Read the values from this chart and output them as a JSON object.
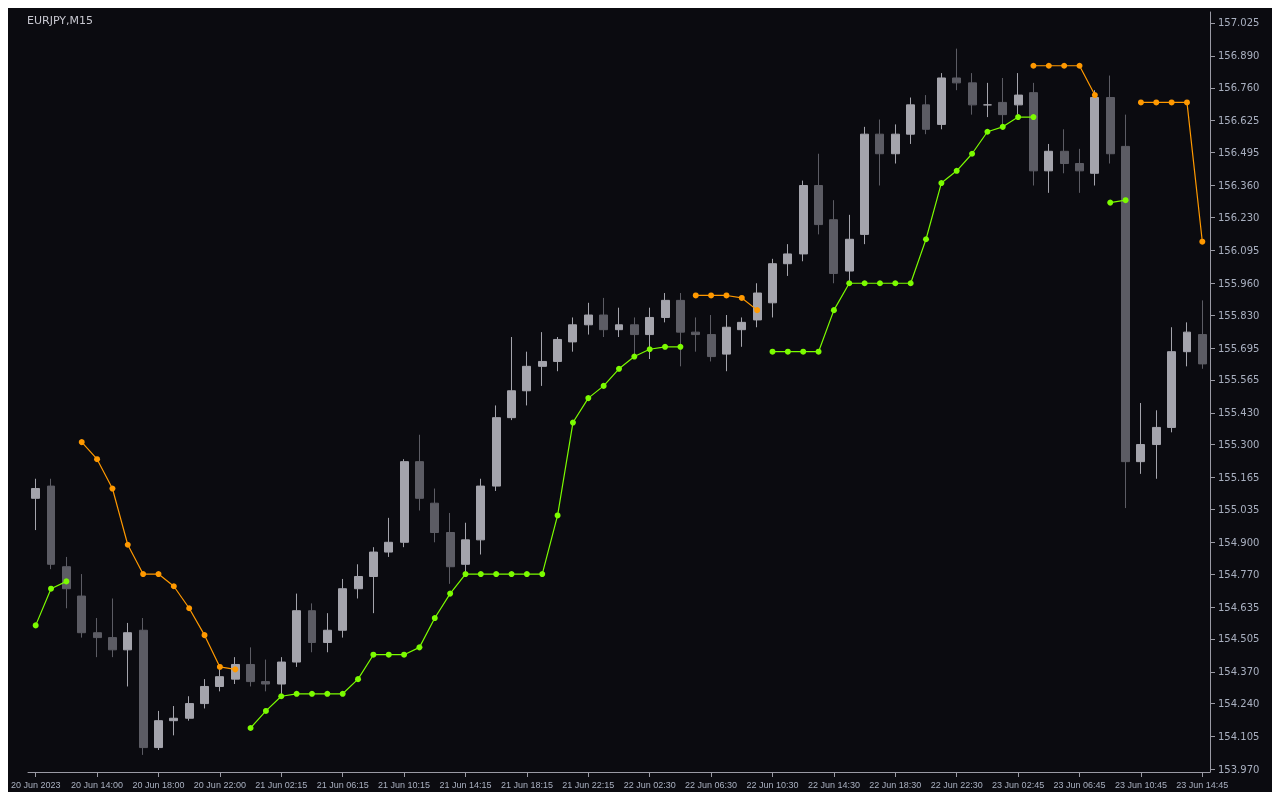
{
  "chart_data": {
    "type": "candlestick",
    "title": "EURJPY,M15",
    "categories": [
      "20 Jun 2023",
      null,
      null,
      null,
      "20 Jun 14:00",
      null,
      null,
      null,
      "20 Jun 18:00",
      null,
      null,
      null,
      "20 Jun 22:00",
      null,
      null,
      null,
      "21 Jun 02:15",
      null,
      null,
      null,
      "21 Jun 06:15",
      null,
      null,
      null,
      "21 Jun 10:15",
      null,
      null,
      null,
      "21 Jun 14:15",
      null,
      null,
      null,
      "21 Jun 18:15",
      null,
      null,
      null,
      "21 Jun 22:15",
      null,
      null,
      null,
      "22 Jun 02:30",
      null,
      null,
      null,
      "22 Jun 06:30",
      null,
      null,
      null,
      "22 Jun 10:30",
      null,
      null,
      null,
      "22 Jun 14:30",
      null,
      null,
      null,
      "22 Jun 18:30",
      null,
      null,
      null,
      "22 Jun 22:30",
      null,
      null,
      null,
      "23 Jun 02:45",
      null,
      null,
      null,
      "23 Jun 06:45",
      null,
      null,
      null,
      "23 Jun 10:45",
      null,
      null,
      null,
      "23 Jun 14:45"
    ],
    "ohlc": [
      [
        155.08,
        155.16,
        154.95,
        155.12
      ],
      [
        155.13,
        155.16,
        154.79,
        154.81
      ],
      [
        154.8,
        154.84,
        154.63,
        154.71
      ],
      [
        154.68,
        154.77,
        154.51,
        154.53
      ],
      [
        154.53,
        154.59,
        154.43,
        154.51
      ],
      [
        154.51,
        154.67,
        154.43,
        154.46
      ],
      [
        154.46,
        154.57,
        154.31,
        154.53
      ],
      [
        154.54,
        154.59,
        154.03,
        154.06
      ],
      [
        154.06,
        154.21,
        154.05,
        154.17
      ],
      [
        154.17,
        154.23,
        154.11,
        154.18
      ],
      [
        154.18,
        154.27,
        154.17,
        154.24
      ],
      [
        154.24,
        154.34,
        154.22,
        154.31
      ],
      [
        154.31,
        154.38,
        154.29,
        154.35
      ],
      [
        154.34,
        154.43,
        154.32,
        154.4
      ],
      [
        154.4,
        154.47,
        154.31,
        154.33
      ],
      [
        154.33,
        154.42,
        154.29,
        154.32
      ],
      [
        154.32,
        154.43,
        154.28,
        154.41
      ],
      [
        154.41,
        154.69,
        154.39,
        154.62
      ],
      [
        154.62,
        154.65,
        154.45,
        154.49
      ],
      [
        154.49,
        154.61,
        154.45,
        154.54
      ],
      [
        154.54,
        154.75,
        154.51,
        154.71
      ],
      [
        154.71,
        154.81,
        154.67,
        154.76
      ],
      [
        154.76,
        154.88,
        154.61,
        154.86
      ],
      [
        154.86,
        155.0,
        154.84,
        154.9
      ],
      [
        154.9,
        155.24,
        154.88,
        155.23
      ],
      [
        155.23,
        155.34,
        155.03,
        155.08
      ],
      [
        155.06,
        155.12,
        154.9,
        154.94
      ],
      [
        154.94,
        155.02,
        154.73,
        154.8
      ],
      [
        154.81,
        154.98,
        154.77,
        154.91
      ],
      [
        154.91,
        155.16,
        154.85,
        155.13
      ],
      [
        155.13,
        155.46,
        155.11,
        155.41
      ],
      [
        155.41,
        155.74,
        155.4,
        155.52
      ],
      [
        155.52,
        155.68,
        155.46,
        155.62
      ],
      [
        155.62,
        155.76,
        155.54,
        155.64
      ],
      [
        155.64,
        155.74,
        155.6,
        155.73
      ],
      [
        155.72,
        155.82,
        155.68,
        155.79
      ],
      [
        155.79,
        155.88,
        155.75,
        155.83
      ],
      [
        155.83,
        155.9,
        155.74,
        155.77
      ],
      [
        155.77,
        155.86,
        155.74,
        155.79
      ],
      [
        155.79,
        155.82,
        155.67,
        155.75
      ],
      [
        155.75,
        155.86,
        155.65,
        155.82
      ],
      [
        155.82,
        155.92,
        155.8,
        155.89
      ],
      [
        155.89,
        155.92,
        155.62,
        155.76
      ],
      [
        155.76,
        155.82,
        155.68,
        155.75
      ],
      [
        155.75,
        155.83,
        155.64,
        155.66
      ],
      [
        155.67,
        155.83,
        155.6,
        155.78
      ],
      [
        155.77,
        155.82,
        155.7,
        155.8
      ],
      [
        155.81,
        155.96,
        155.78,
        155.92
      ],
      [
        155.88,
        156.06,
        155.82,
        156.04
      ],
      [
        156.04,
        156.12,
        155.99,
        156.08
      ],
      [
        156.08,
        156.38,
        156.05,
        156.36
      ],
      [
        156.36,
        156.49,
        156.16,
        156.2
      ],
      [
        156.22,
        156.3,
        155.96,
        156.0
      ],
      [
        156.01,
        156.24,
        155.97,
        156.14
      ],
      [
        156.16,
        156.6,
        156.12,
        156.57
      ],
      [
        156.57,
        156.63,
        156.36,
        156.49
      ],
      [
        156.49,
        156.61,
        156.45,
        156.57
      ],
      [
        156.57,
        156.72,
        156.53,
        156.69
      ],
      [
        156.69,
        156.73,
        156.57,
        156.59
      ],
      [
        156.61,
        156.82,
        156.59,
        156.8
      ],
      [
        156.8,
        156.92,
        156.75,
        156.78
      ],
      [
        156.78,
        156.82,
        156.65,
        156.69
      ],
      [
        156.69,
        156.78,
        156.64,
        156.69
      ],
      [
        156.7,
        156.8,
        156.61,
        156.65
      ],
      [
        156.69,
        156.82,
        156.65,
        156.73
      ],
      [
        156.74,
        156.78,
        156.36,
        156.42
      ],
      [
        156.42,
        156.53,
        156.33,
        156.5
      ],
      [
        156.5,
        156.59,
        156.41,
        156.45
      ],
      [
        156.45,
        156.51,
        156.33,
        156.42
      ],
      [
        156.41,
        156.75,
        156.36,
        156.72
      ],
      [
        156.72,
        156.81,
        156.45,
        156.49
      ],
      [
        156.52,
        156.65,
        155.04,
        155.23
      ],
      [
        155.23,
        155.47,
        155.18,
        155.3
      ],
      [
        155.3,
        155.44,
        155.16,
        155.37
      ],
      [
        155.37,
        155.78,
        155.35,
        155.68
      ],
      [
        155.68,
        155.8,
        155.62,
        155.76
      ],
      [
        155.75,
        155.89,
        155.61,
        155.63
      ]
    ],
    "colors": [
      "#a4a4ac",
      "#5c5c64",
      "#5c5c64",
      "#5c5c64",
      "#5c5c64",
      "#5c5c64",
      "#a4a4ac",
      "#5c5c64",
      "#a4a4ac",
      "#a4a4ac",
      "#a4a4ac",
      "#a4a4ac",
      "#a4a4ac",
      "#a4a4ac",
      "#5c5c64",
      "#5c5c64",
      "#a4a4ac",
      "#a4a4ac",
      "#5c5c64",
      "#a4a4ac",
      "#a4a4ac",
      "#a4a4ac",
      "#a4a4ac",
      "#a4a4ac",
      "#a4a4ac",
      "#5c5c64",
      "#5c5c64",
      "#5c5c64",
      "#a4a4ac",
      "#a4a4ac",
      "#a4a4ac",
      "#a4a4ac",
      "#a4a4ac",
      "#a4a4ac",
      "#a4a4ac",
      "#a4a4ac",
      "#a4a4ac",
      "#5c5c64",
      "#a4a4ac",
      "#5c5c64",
      "#a4a4ac",
      "#a4a4ac",
      "#5c5c64",
      "#5c5c64",
      "#5c5c64",
      "#a4a4ac",
      "#a4a4ac",
      "#a4a4ac",
      "#a4a4ac",
      "#a4a4ac",
      "#a4a4ac",
      "#5c5c64",
      "#5c5c64",
      "#a4a4ac",
      "#a4a4ac",
      "#5c5c64",
      "#a4a4ac",
      "#a4a4ac",
      "#5c5c64",
      "#a4a4ac",
      "#5c5c64",
      "#5c5c64",
      "#a4a4ac",
      "#5c5c64",
      "#a4a4ac",
      "#5c5c64",
      "#a4a4ac",
      "#5c5c64",
      "#5c5c64",
      "#a4a4ac",
      "#5c5c64",
      "#5c5c64",
      "#a4a4ac",
      "#a4a4ac",
      "#a4a4ac",
      "#a4a4ac",
      "#5c5c64"
    ],
    "series": [
      {
        "type": "line",
        "color": "#ff9900",
        "values": [
          null,
          null,
          null,
          155.31,
          155.24,
          155.12,
          154.89,
          154.77,
          154.77,
          154.72,
          154.63,
          154.52,
          154.39,
          154.38,
          null,
          null,
          null,
          null,
          null,
          null,
          null,
          null,
          null,
          null,
          null,
          null,
          null,
          null,
          null,
          null,
          null,
          null,
          null,
          null,
          null,
          null,
          null,
          null,
          null,
          null,
          null,
          null,
          null,
          155.91,
          155.91,
          155.91,
          155.9,
          155.85,
          null,
          null,
          null,
          null,
          null,
          null,
          null,
          null,
          null,
          null,
          null,
          null,
          null,
          null,
          null,
          null,
          null,
          156.85,
          156.85,
          156.85,
          156.85,
          156.73,
          null,
          null,
          156.7,
          156.7,
          156.7,
          156.7,
          156.13
        ]
      },
      {
        "type": "line",
        "color": "#7cfc00",
        "values": [
          154.56,
          154.71,
          154.74,
          null,
          null,
          null,
          null,
          null,
          null,
          null,
          null,
          null,
          null,
          null,
          154.14,
          154.21,
          154.27,
          154.28,
          154.28,
          154.28,
          154.28,
          154.34,
          154.44,
          154.44,
          154.44,
          154.47,
          154.59,
          154.69,
          154.77,
          154.77,
          154.77,
          154.77,
          154.77,
          154.77,
          155.01,
          155.39,
          155.49,
          155.54,
          155.61,
          155.66,
          155.69,
          155.7,
          155.7,
          null,
          null,
          null,
          null,
          null,
          155.68,
          155.68,
          155.68,
          155.68,
          155.85,
          155.96,
          155.96,
          155.96,
          155.96,
          155.96,
          156.14,
          156.37,
          156.42,
          156.49,
          156.58,
          156.6,
          156.64,
          156.64,
          null,
          null,
          null,
          null,
          156.29,
          156.3,
          null,
          null,
          null,
          null,
          null
        ]
      }
    ],
    "ylim": [
      153.96,
      157.07
    ],
    "yticks": [
      157.025,
      {
        "value": 156.89,
        "label": "156.890"
      },
      {
        "value": 156.76,
        "label": "156.760"
      },
      156.625,
      156.495,
      {
        "value": 156.36,
        "label": "156.360"
      },
      {
        "value": 156.23,
        "label": "156.230"
      },
      156.095,
      {
        "value": 155.96,
        "label": "155.960"
      },
      {
        "value": 155.83,
        "label": "155.830"
      },
      155.695,
      155.565,
      {
        "value": 155.43,
        "label": "155.430"
      },
      {
        "value": 155.3,
        "label": "155.300"
      },
      155.165,
      155.035,
      {
        "value": 154.9,
        "label": "154.900"
      },
      {
        "value": 154.77,
        "label": "154.770"
      },
      154.635,
      154.505,
      {
        "value": 154.37,
        "label": "154.370"
      },
      {
        "value": 154.24,
        "label": "154.240"
      },
      154.105,
      {
        "value": 153.97,
        "label": "153.970"
      }
    ],
    "marker": "circle",
    "line_style": "solid"
  }
}
